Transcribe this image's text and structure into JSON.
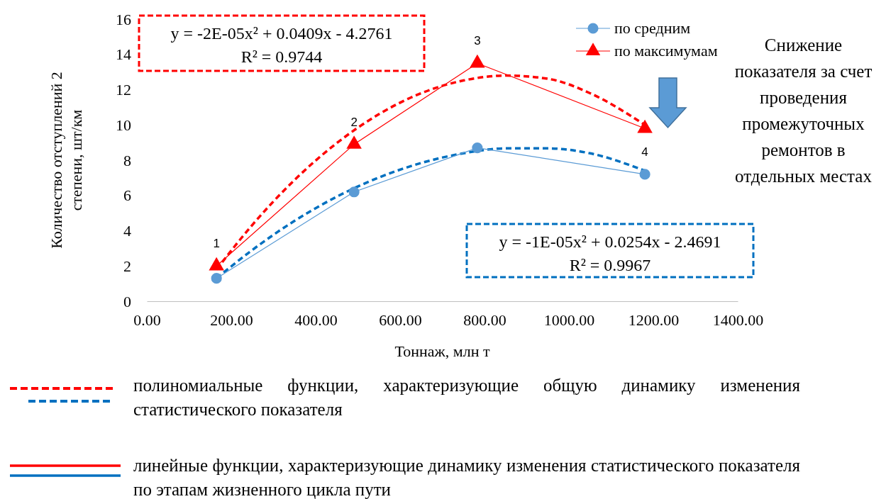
{
  "chart_data": {
    "type": "line",
    "xlabel": "Тоннаж, млн т",
    "ylabel": "Количество отступлений 2 степени, шт/км",
    "xlim": [
      0,
      1400
    ],
    "xticks": [
      {
        "value": 0,
        "label": "0.00"
      },
      {
        "value": 200,
        "label": "200.00"
      },
      {
        "value": 400,
        "label": "400.00"
      },
      {
        "value": 600,
        "label": "600.00"
      },
      {
        "value": 800,
        "label": "800.00"
      },
      {
        "value": 1000,
        "label": "1000.00"
      },
      {
        "value": 1200,
        "label": "1200.00"
      },
      {
        "value": 1400,
        "label": "1400.00"
      }
    ],
    "ylim": [
      0,
      16
    ],
    "yticks": [
      0,
      2,
      4,
      6,
      8,
      10,
      12,
      14,
      16
    ],
    "grid": false,
    "legend": "top right",
    "series": [
      {
        "name": "по средним",
        "color": "#5b9bd5",
        "marker": "circle",
        "line_style": "solid",
        "x": [
          165,
          491,
          783,
          1180
        ],
        "values": [
          1.3,
          6.2,
          8.7,
          7.2
        ]
      },
      {
        "name": "по максимумам",
        "color": "#ff0000",
        "marker": "triangle",
        "line_style": "solid",
        "x": [
          165,
          491,
          783,
          1180
        ],
        "values": [
          2.0,
          8.9,
          13.5,
          9.8
        ]
      },
      {
        "color": "#ff0000",
        "marker": "none",
        "line_style": "dashed",
        "x": [
          165,
          250,
          350,
          450,
          550,
          650,
          750,
          850,
          950,
          1050,
          1180
        ],
        "values": [
          1.8,
          4.33,
          6.88,
          8.97,
          10.61,
          11.8,
          12.52,
          12.8,
          12.62,
          11.8,
          10.0
        ]
      },
      {
        "color": "#0070c0",
        "marker": "none",
        "line_style": "dashed",
        "x": [
          165,
          250,
          350,
          450,
          550,
          650,
          750,
          850,
          950,
          1050,
          1180
        ],
        "values": [
          1.3,
          2.91,
          4.56,
          5.93,
          7.02,
          7.84,
          8.39,
          8.67,
          8.67,
          8.39,
          7.4
        ]
      }
    ],
    "annotations": [
      {
        "text": "1",
        "x": 165,
        "y": 2.0
      },
      {
        "text": "2",
        "x": 491,
        "y": 8.9
      },
      {
        "text": "3",
        "x": 783,
        "y": 13.5
      },
      {
        "text": "4",
        "x": 1180,
        "y": 7.2
      },
      "y = -2E-05x² + 0.0409x - 4.2761",
      "R² = 0.9744",
      "y = -1E-05x² + 0.0254x - 2.4691",
      "R² = 0.9967",
      "Снижение показателя за счет проведения промежуточных ремонтов в отдельных местах",
      "полиномиальные функции, характеризующие общую динамику изменения статистического показателя",
      "линейные функции, характеризующие динамику изменения статистического показателя по этапам жизненного цикла пути"
    ]
  }
}
